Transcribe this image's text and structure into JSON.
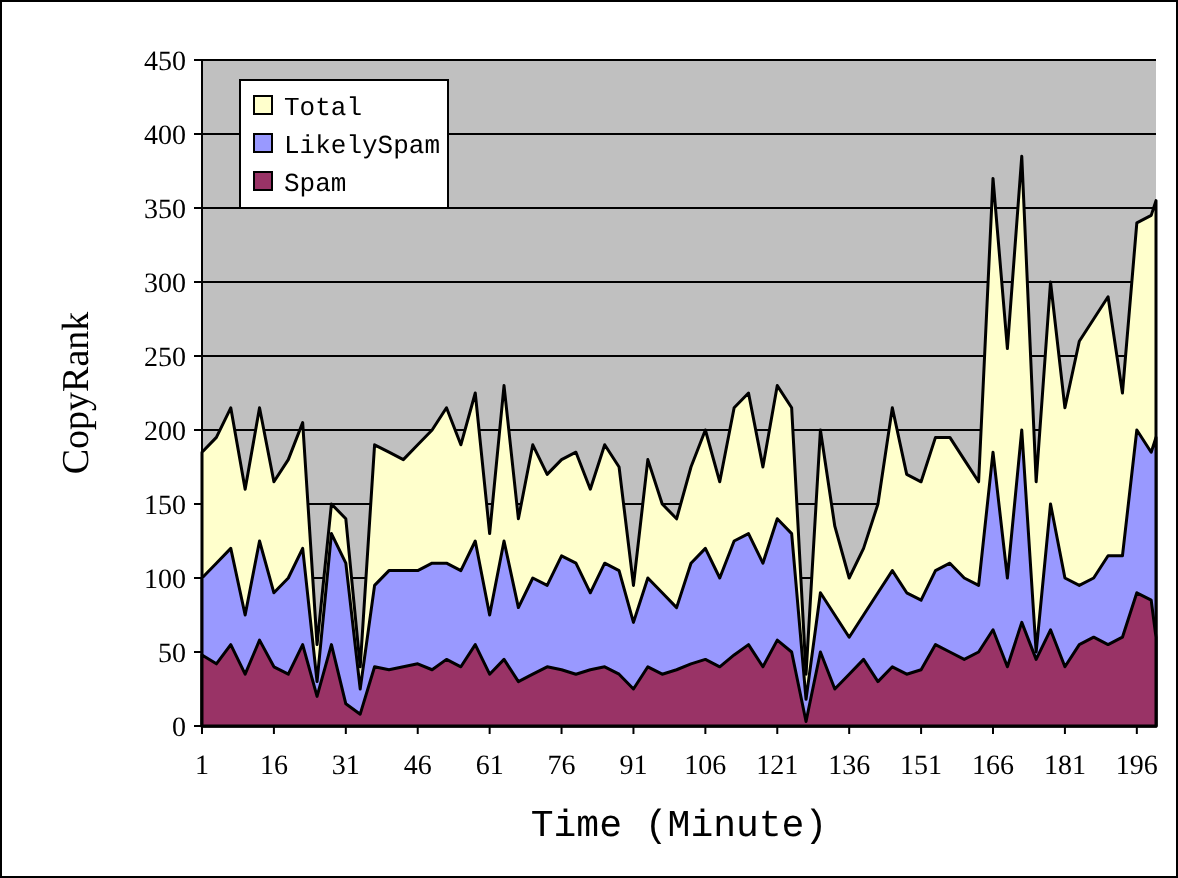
{
  "chart_data": {
    "type": "area",
    "xlabel": "Time (Minute)",
    "ylabel": "CopyRank",
    "xlim": [
      1,
      200
    ],
    "xticks": [
      1,
      16,
      31,
      46,
      61,
      76,
      91,
      106,
      121,
      136,
      151,
      166,
      181,
      196
    ],
    "ylim": [
      0,
      450
    ],
    "yticks": [
      0,
      50,
      100,
      150,
      200,
      250,
      300,
      350,
      400,
      450
    ],
    "grid": "y",
    "legend": "top left",
    "x": [
      1,
      4,
      7,
      10,
      13,
      16,
      19,
      22,
      25,
      28,
      31,
      34,
      37,
      40,
      43,
      46,
      49,
      52,
      55,
      58,
      61,
      64,
      67,
      70,
      73,
      76,
      79,
      82,
      85,
      88,
      91,
      94,
      97,
      100,
      103,
      106,
      109,
      112,
      115,
      118,
      121,
      124,
      127,
      130,
      133,
      136,
      139,
      142,
      145,
      148,
      151,
      154,
      157,
      160,
      163,
      166,
      169,
      172,
      175,
      178,
      181,
      184,
      187,
      190,
      193,
      196,
      199,
      200
    ],
    "series": [
      {
        "name": "Total",
        "color": "#ffffcc",
        "values": [
          185,
          195,
          215,
          160,
          215,
          165,
          180,
          205,
          55,
          150,
          140,
          40,
          190,
          185,
          180,
          190,
          200,
          215,
          190,
          225,
          130,
          230,
          140,
          190,
          170,
          180,
          185,
          160,
          190,
          175,
          95,
          180,
          150,
          140,
          175,
          200,
          165,
          215,
          225,
          175,
          230,
          215,
          35,
          200,
          135,
          100,
          120,
          150,
          215,
          170,
          165,
          195,
          195,
          180,
          165,
          370,
          255,
          385,
          165,
          300,
          215,
          260,
          275,
          290,
          225,
          340,
          345,
          355
        ]
      },
      {
        "name": "LikelySpam",
        "color": "#9999ff",
        "values": [
          100,
          110,
          120,
          75,
          125,
          90,
          100,
          120,
          30,
          130,
          110,
          25,
          95,
          105,
          105,
          105,
          110,
          110,
          105,
          125,
          75,
          125,
          80,
          100,
          95,
          115,
          110,
          90,
          110,
          105,
          70,
          100,
          90,
          80,
          110,
          120,
          100,
          125,
          130,
          110,
          140,
          130,
          18,
          90,
          75,
          60,
          75,
          90,
          105,
          90,
          85,
          105,
          110,
          100,
          95,
          185,
          100,
          200,
          50,
          150,
          100,
          95,
          100,
          115,
          115,
          200,
          185,
          195
        ]
      },
      {
        "name": "Spam",
        "color": "#993366",
        "values": [
          48,
          42,
          55,
          35,
          58,
          40,
          35,
          55,
          20,
          55,
          15,
          8,
          40,
          38,
          40,
          42,
          38,
          45,
          40,
          55,
          35,
          45,
          30,
          35,
          40,
          38,
          35,
          38,
          40,
          35,
          25,
          40,
          35,
          38,
          42,
          45,
          40,
          48,
          55,
          40,
          58,
          50,
          3,
          50,
          25,
          35,
          45,
          30,
          40,
          35,
          38,
          55,
          50,
          45,
          50,
          65,
          40,
          70,
          45,
          65,
          40,
          55,
          60,
          55,
          60,
          90,
          85,
          60
        ]
      }
    ]
  }
}
